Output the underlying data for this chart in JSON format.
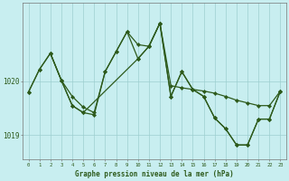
{
  "xlabel": "Graphe pression niveau de la mer (hPa)",
  "background_color": "#c8eef0",
  "grid_color": "#9dcfcf",
  "line_color": "#2d5a1b",
  "ylim": [
    1018.55,
    1021.45
  ],
  "yticks": [
    1019,
    1020
  ],
  "xticks": [
    0,
    1,
    2,
    3,
    4,
    5,
    6,
    7,
    8,
    9,
    10,
    11,
    12,
    13,
    14,
    15,
    16,
    17,
    18,
    19,
    20,
    21,
    22,
    23
  ],
  "s1_x": [
    0,
    1,
    2,
    3,
    4,
    5,
    6,
    7,
    8,
    9,
    10,
    11,
    12,
    13,
    14,
    15,
    16,
    17,
    18,
    19,
    20,
    21,
    22,
    23
  ],
  "s1_y": [
    1019.8,
    1020.22,
    1020.52,
    1020.02,
    1019.72,
    1019.52,
    1019.42,
    1020.18,
    1020.55,
    1020.92,
    1020.68,
    1020.65,
    1021.08,
    1019.92,
    1019.88,
    1019.85,
    1019.82,
    1019.78,
    1019.72,
    1019.65,
    1019.6,
    1019.55,
    1019.55,
    1019.82
  ],
  "s2_x": [
    0,
    1,
    2,
    3,
    4,
    5,
    10,
    11,
    12,
    13,
    14,
    15,
    16,
    17,
    18,
    19,
    20,
    21,
    22,
    23
  ],
  "s2_y": [
    1019.8,
    1020.22,
    1020.52,
    1020.02,
    1019.55,
    1019.42,
    1020.42,
    1020.65,
    1021.08,
    1019.72,
    1020.18,
    1019.85,
    1019.72,
    1019.32,
    1019.12,
    1018.82,
    1018.82,
    1019.3,
    1019.3,
    1019.82
  ],
  "s3_x": [
    2,
    3,
    4,
    5,
    6,
    7,
    8,
    9,
    10,
    11,
    12,
    13,
    14,
    15,
    16,
    17,
    18,
    19,
    20,
    21,
    22,
    23
  ],
  "s3_y": [
    1020.52,
    1020.02,
    1019.55,
    1019.42,
    1019.38,
    1020.18,
    1020.55,
    1020.92,
    1020.42,
    1020.65,
    1021.08,
    1019.72,
    1020.18,
    1019.85,
    1019.72,
    1019.32,
    1019.12,
    1018.82,
    1018.82,
    1019.3,
    1019.3,
    1019.82
  ]
}
